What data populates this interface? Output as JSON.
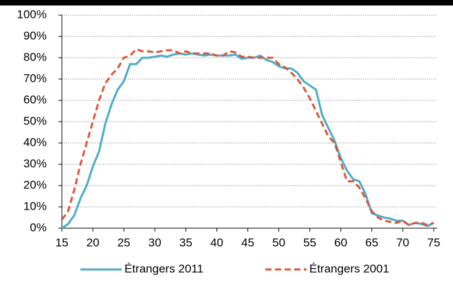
{
  "chart_data": {
    "type": "line",
    "x": [
      15,
      16,
      17,
      18,
      19,
      20,
      21,
      22,
      23,
      24,
      25,
      26,
      27,
      28,
      29,
      30,
      31,
      32,
      33,
      34,
      35,
      36,
      37,
      38,
      39,
      40,
      41,
      42,
      43,
      44,
      45,
      46,
      47,
      48,
      49,
      50,
      51,
      52,
      53,
      54,
      55,
      56,
      57,
      58,
      59,
      60,
      61,
      62,
      63,
      64,
      65,
      66,
      67,
      68,
      69,
      70,
      71,
      72,
      73,
      74,
      75
    ],
    "series": [
      {
        "name": "Étrangers 2011",
        "color": "#4bacc6",
        "dash": false,
        "values": [
          0,
          2,
          6,
          14,
          20,
          29,
          36,
          49,
          58,
          65,
          69,
          77,
          77,
          80,
          80,
          80.5,
          81,
          80.5,
          81.5,
          82,
          81.5,
          82,
          81.5,
          81,
          81.5,
          81,
          81,
          81,
          81.5,
          79.5,
          80,
          80,
          81,
          79,
          78,
          76,
          75,
          75,
          73,
          69,
          67,
          65,
          53,
          47,
          41,
          33,
          27,
          23,
          22,
          16,
          7,
          6,
          5,
          4.5,
          3.5,
          3.5,
          1.5,
          2.5,
          2,
          1,
          2.5
        ]
      },
      {
        "name": "Étrangers 2001",
        "color": "#e0533a",
        "dash": true,
        "values": [
          4,
          8,
          18,
          30,
          40,
          50,
          60,
          68,
          72,
          75,
          80,
          81,
          84,
          83,
          83,
          82.5,
          83,
          83.5,
          83.5,
          82,
          83,
          82,
          82,
          82,
          82,
          81,
          81,
          83,
          82.5,
          80.5,
          80.5,
          80,
          80,
          80,
          80,
          77,
          75.5,
          73,
          70,
          66,
          61,
          55,
          49,
          43,
          40,
          31,
          22,
          22,
          19,
          14,
          8,
          5,
          3.5,
          3,
          2.5,
          3.5,
          1.5,
          2.5,
          2.5,
          1.5,
          2.5
        ]
      }
    ],
    "xlim": [
      15,
      75
    ],
    "xticks": [
      15,
      20,
      25,
      30,
      35,
      40,
      45,
      50,
      55,
      60,
      65,
      70,
      75
    ],
    "ylim": [
      0,
      100
    ],
    "yticks": [
      {
        "value": 0,
        "label": "0%"
      },
      {
        "value": 10,
        "label": "10%"
      },
      {
        "value": 20,
        "label": "20%"
      },
      {
        "value": 30,
        "label": "30%"
      },
      {
        "value": 40,
        "label": "40%"
      },
      {
        "value": 50,
        "label": "50%"
      },
      {
        "value": 60,
        "label": "60%"
      },
      {
        "value": 70,
        "label": "70%"
      },
      {
        "value": 80,
        "label": "80%"
      },
      {
        "value": 90,
        "label": "90%"
      },
      {
        "value": 100,
        "label": "100%"
      }
    ],
    "grid": true,
    "legend": "bottom"
  }
}
